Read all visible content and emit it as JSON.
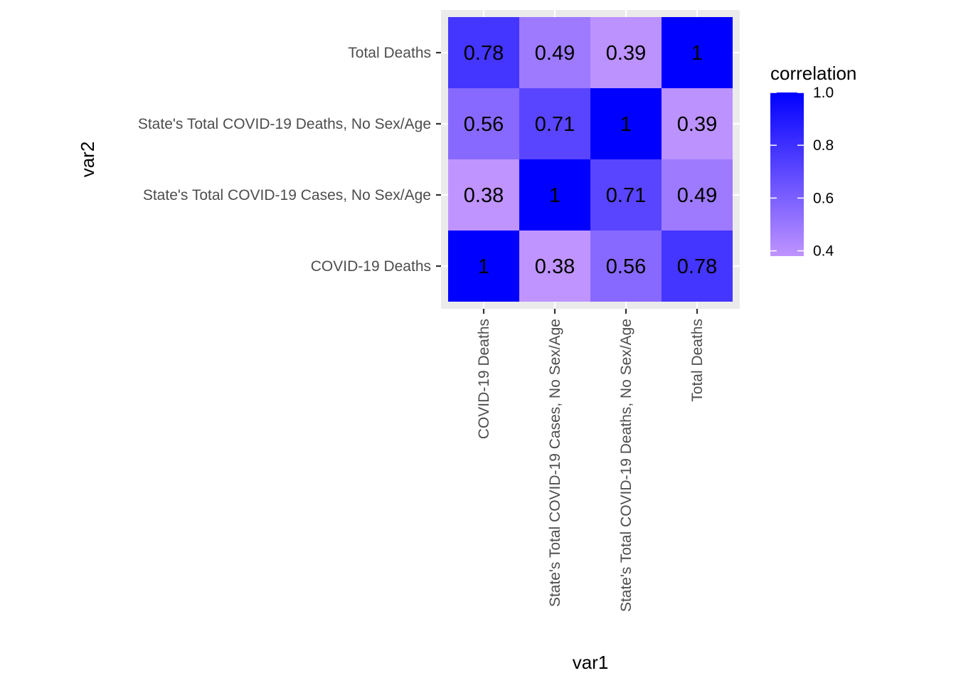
{
  "chart_data": {
    "type": "heatmap",
    "xlabel": "var1",
    "ylabel": "var2",
    "x_categories": [
      "COVID-19 Deaths",
      "State's Total COVID-19 Cases, No Sex/Age",
      "State's Total COVID-19 Deaths, No Sex/Age",
      "Total Deaths"
    ],
    "y_categories": [
      "COVID-19 Deaths",
      "State's Total COVID-19 Cases, No Sex/Age",
      "State's Total COVID-19 Deaths, No Sex/Age",
      "Total Deaths"
    ],
    "matrix": [
      [
        1,
        0.38,
        0.56,
        0.78
      ],
      [
        0.38,
        1,
        0.71,
        0.49
      ],
      [
        0.56,
        0.71,
        1,
        0.39
      ],
      [
        0.78,
        0.49,
        0.39,
        1
      ]
    ],
    "cell_labels": [
      [
        "1",
        "0.38",
        "0.56",
        "0.78"
      ],
      [
        "0.38",
        "1",
        "0.71",
        "0.49"
      ],
      [
        "0.56",
        "0.71",
        "1",
        "0.39"
      ],
      [
        "0.78",
        "0.49",
        "0.39",
        "1"
      ]
    ],
    "legend": {
      "title": "correlation",
      "breaks": [
        1.0,
        0.8,
        0.6,
        0.4
      ],
      "break_labels": [
        "1.0",
        "0.8",
        "0.6",
        "0.4"
      ],
      "range": [
        0.38,
        1.0
      ]
    },
    "colors": {
      "low": "#bf94ff",
      "high": "#0000ff",
      "panel_background": "#ebebeb",
      "grid": "#ffffff"
    }
  }
}
